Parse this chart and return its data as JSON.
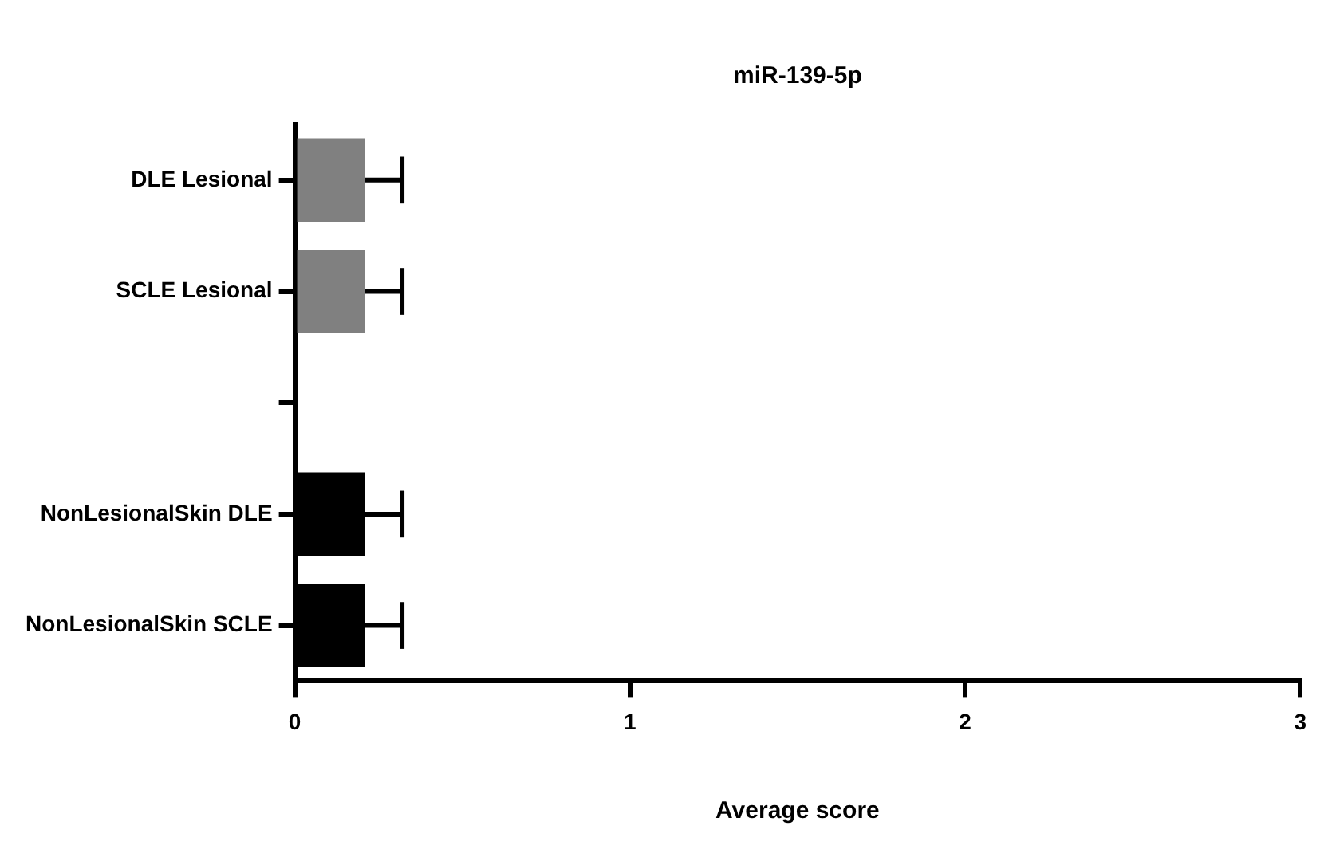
{
  "chart_data": {
    "type": "bar",
    "orientation": "horizontal",
    "title": "miR-139-5p",
    "xlabel": "Average score",
    "categories": [
      "DLE Lesional",
      "SCLE Lesional",
      null,
      "NonLesionalSkin DLE",
      "NonLesionalSkin SCLE"
    ],
    "values": [
      0.21,
      0.21,
      0,
      0.21,
      0.21
    ],
    "errors": [
      0.11,
      0.11,
      null,
      0.11,
      0.11
    ],
    "colors": [
      "#808080",
      "#808080",
      "#808080",
      "#000000",
      "#000000"
    ],
    "xlim": [
      0,
      3
    ],
    "xticks": [
      0,
      1,
      2,
      3
    ],
    "grid": false,
    "legend": false
  }
}
